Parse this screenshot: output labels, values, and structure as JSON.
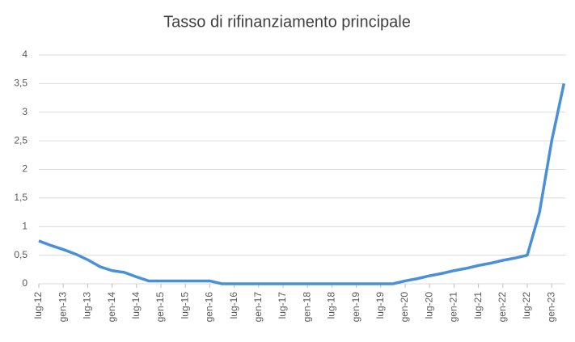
{
  "chart_data": {
    "type": "line",
    "title": "Tasso di rifinanziamento principale",
    "categories": [
      "lug-12",
      null,
      "gen-13",
      null,
      "lug-13",
      null,
      "gen-14",
      null,
      "lug-14",
      null,
      "gen-15",
      null,
      "lug-15",
      null,
      "gen-16",
      null,
      "lug-16",
      null,
      "gen-17",
      null,
      "lug-17",
      null,
      "gen-18",
      null,
      "lug-18",
      null,
      "gen-19",
      null,
      "lug-19",
      null,
      "gen-20",
      null,
      "lug-20",
      null,
      "gen-21",
      null,
      "lug-21",
      null,
      "gen-22",
      null,
      "lug-22",
      null,
      "gen-23",
      null
    ],
    "series": [
      {
        "name": "Tasso di rifinanziamento principale",
        "color": "#4a90d9",
        "values": [
          0.75,
          0.67,
          0.6,
          0.52,
          0.42,
          0.3,
          0.23,
          0.2,
          0.12,
          0.05,
          0.05,
          0.05,
          0.05,
          0.05,
          0.05,
          0,
          0,
          0,
          0,
          0,
          0,
          0,
          0,
          0,
          0,
          0,
          0,
          0,
          0,
          0,
          0.05,
          0.09,
          0.14,
          0.18,
          0.23,
          0.27,
          0.32,
          0.36,
          0.41,
          0.45,
          0.5,
          1.25,
          2.5,
          3.5
        ]
      }
    ],
    "ylim": [
      0,
      4
    ],
    "yticks": [
      0,
      {
        "value": 0.5,
        "label": "0,5"
      },
      1,
      {
        "value": 1.5,
        "label": "1,5"
      },
      2,
      {
        "value": 2.5,
        "label": "2,5"
      },
      3,
      {
        "value": 3.5,
        "label": "3,5"
      },
      4
    ],
    "grid": true
  }
}
